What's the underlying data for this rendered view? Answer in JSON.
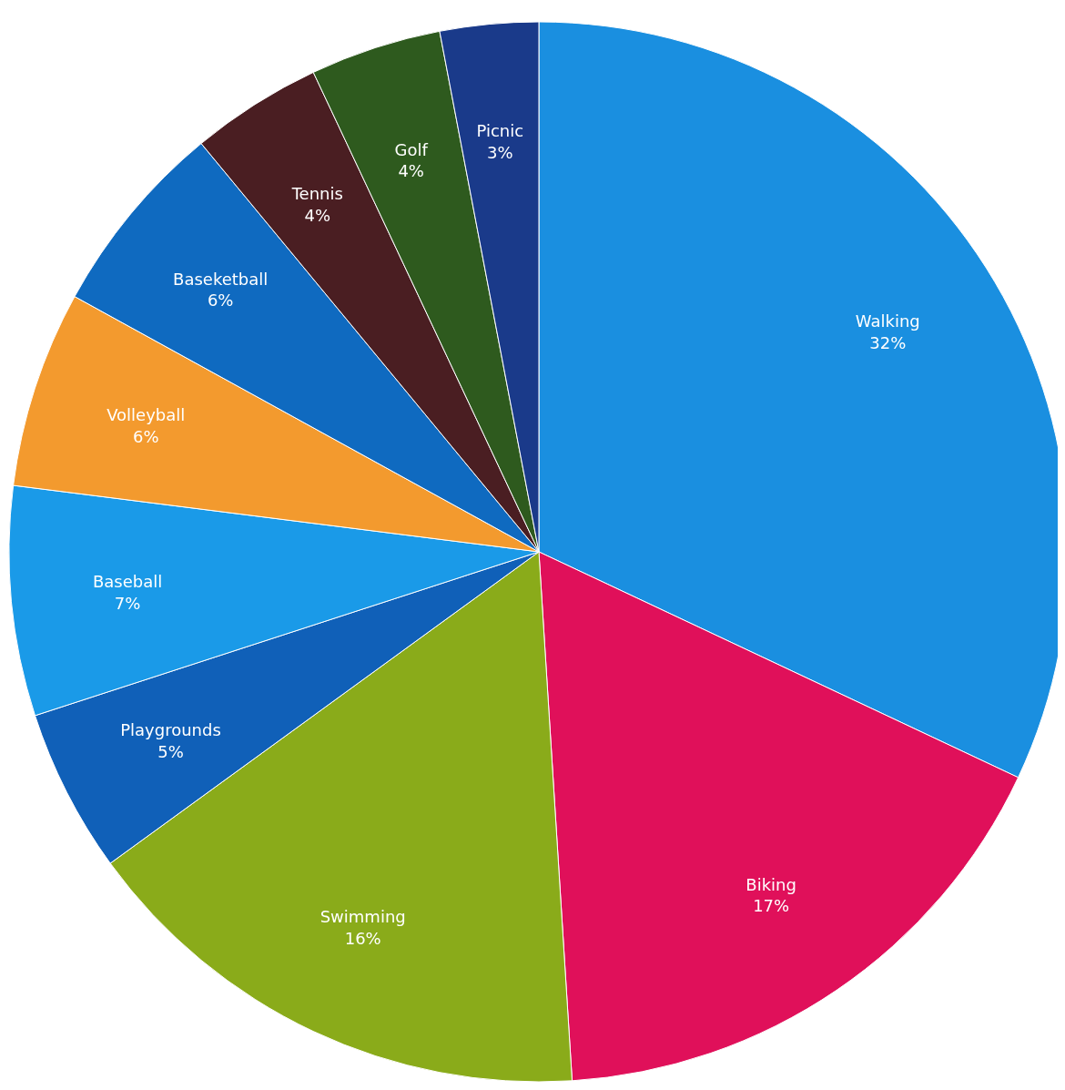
{
  "chart_data": {
    "type": "pie",
    "categories": [
      "Walking",
      "Biking",
      "Swimming",
      "Playgrounds",
      "Baseball",
      "Volleyball",
      "Baseketball",
      "Tennis",
      "Golf",
      "Picnic"
    ],
    "values": [
      32,
      17,
      16,
      5,
      7,
      6,
      6,
      4,
      4,
      3
    ],
    "value_labels": [
      "32%",
      "17%",
      "16%",
      "5%",
      "7%",
      "6%",
      "6%",
      "4%",
      "4%",
      "3%"
    ],
    "colors": [
      "#1a8fe0",
      "#e0105a",
      "#8aab1a",
      "#1060b8",
      "#1a9ae8",
      "#f39a2e",
      "#0f6ac0",
      "#4a1e22",
      "#2e5a1e",
      "#1a3a8a"
    ]
  }
}
